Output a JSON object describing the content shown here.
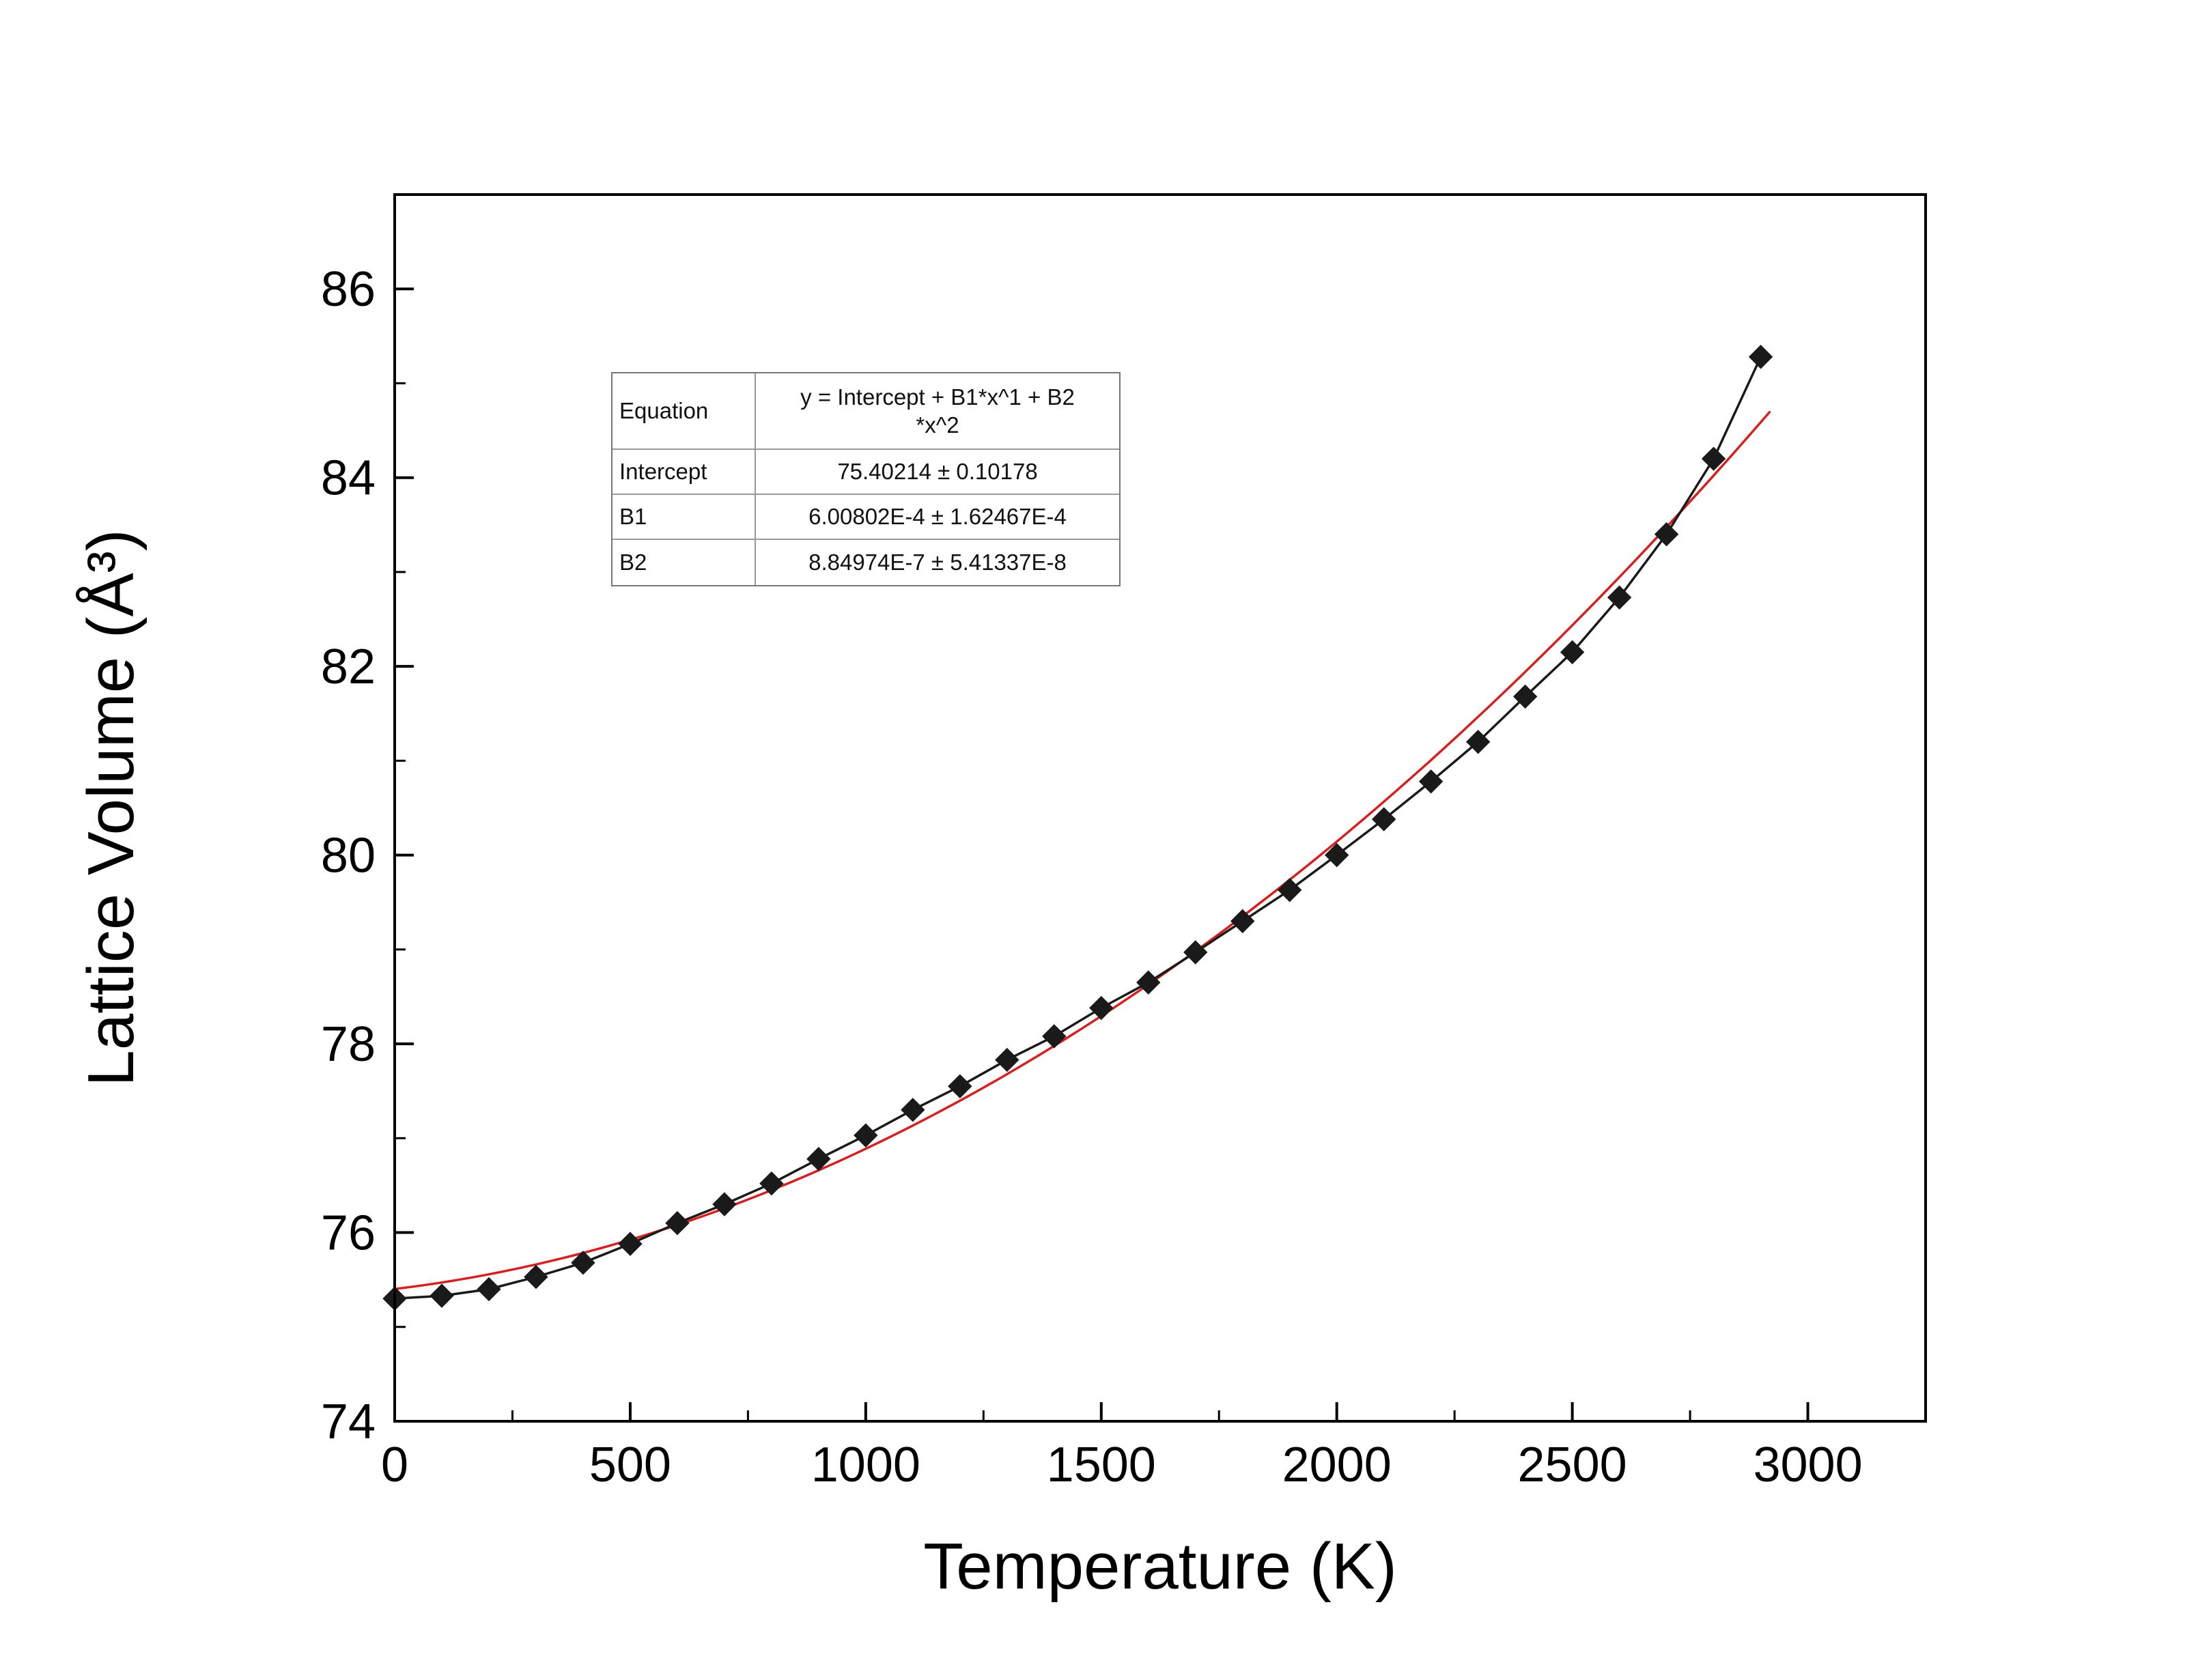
{
  "chart_data": {
    "type": "scatter",
    "title": "",
    "xlabel": "Temperature (K)",
    "ylabel": "Lattice Volume (Å³)",
    "xlim": [
      0,
      3250
    ],
    "ylim": [
      74,
      87
    ],
    "x_ticks": [
      0,
      500,
      1000,
      1500,
      2000,
      2500,
      3000
    ],
    "y_ticks": [
      74,
      76,
      78,
      80,
      82,
      84,
      86
    ],
    "x_minor_step": 250,
    "y_minor_step": 1,
    "grid": "off",
    "colors": {
      "data": "#1a1a1a",
      "fit": "#d42020",
      "axis": "#000000"
    },
    "series": [
      {
        "name": "lattice-volume-data",
        "marker": "diamond",
        "x": [
          0,
          100,
          200,
          300,
          400,
          500,
          600,
          700,
          800,
          900,
          1000,
          1100,
          1200,
          1300,
          1400,
          1500,
          1600,
          1700,
          1800,
          1900,
          2000,
          2100,
          2200,
          2300,
          2400,
          2500,
          2600,
          2700,
          2800,
          2900
        ],
        "y": [
          75.3,
          75.33,
          75.4,
          75.53,
          75.68,
          75.88,
          76.1,
          76.3,
          76.52,
          76.78,
          77.03,
          77.3,
          77.55,
          77.83,
          78.08,
          78.38,
          78.65,
          78.97,
          79.3,
          79.63,
          80.0,
          80.38,
          80.78,
          81.2,
          81.68,
          82.15,
          82.73,
          83.4,
          84.2,
          85.28
        ]
      },
      {
        "name": "quadratic-fit",
        "fit": {
          "intercept": 75.40214,
          "b1": 0.000600802,
          "b2": 8.84974e-07
        },
        "x_range": [
          0,
          2920
        ]
      }
    ],
    "fit_table": {
      "rows": [
        {
          "label": "Equation",
          "value": "y = Intercept + B1*x^1 + B2\n*x^2"
        },
        {
          "label": "Intercept",
          "value": "75.40214 ± 0.10178"
        },
        {
          "label": "B1",
          "value": "6.00802E-4 ± 1.62467E-4"
        },
        {
          "label": "B2",
          "value": "8.84974E-7 ± 5.41337E-8"
        }
      ]
    }
  }
}
